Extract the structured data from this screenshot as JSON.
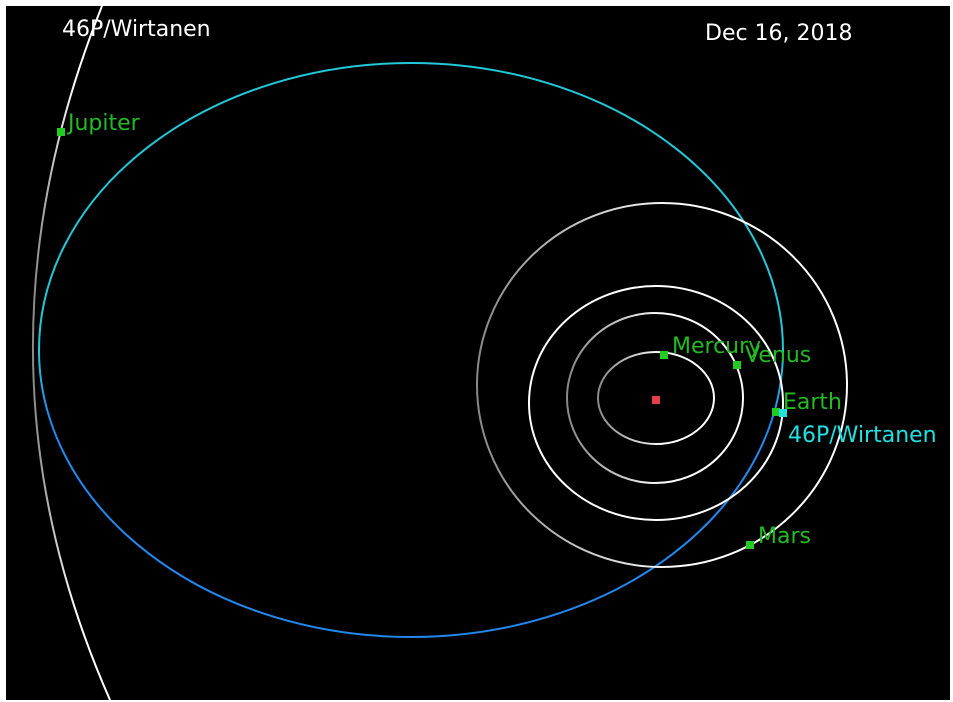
{
  "header": {
    "title": "46P/Wirtanen",
    "date": "Dec 16, 2018"
  },
  "bodies": [
    {
      "label": "Jupiter"
    },
    {
      "label": "Mercury"
    },
    {
      "label": "Venus"
    },
    {
      "label": "Earth"
    },
    {
      "label": "Mars"
    },
    {
      "label": "46P/Wirtanen"
    }
  ]
}
